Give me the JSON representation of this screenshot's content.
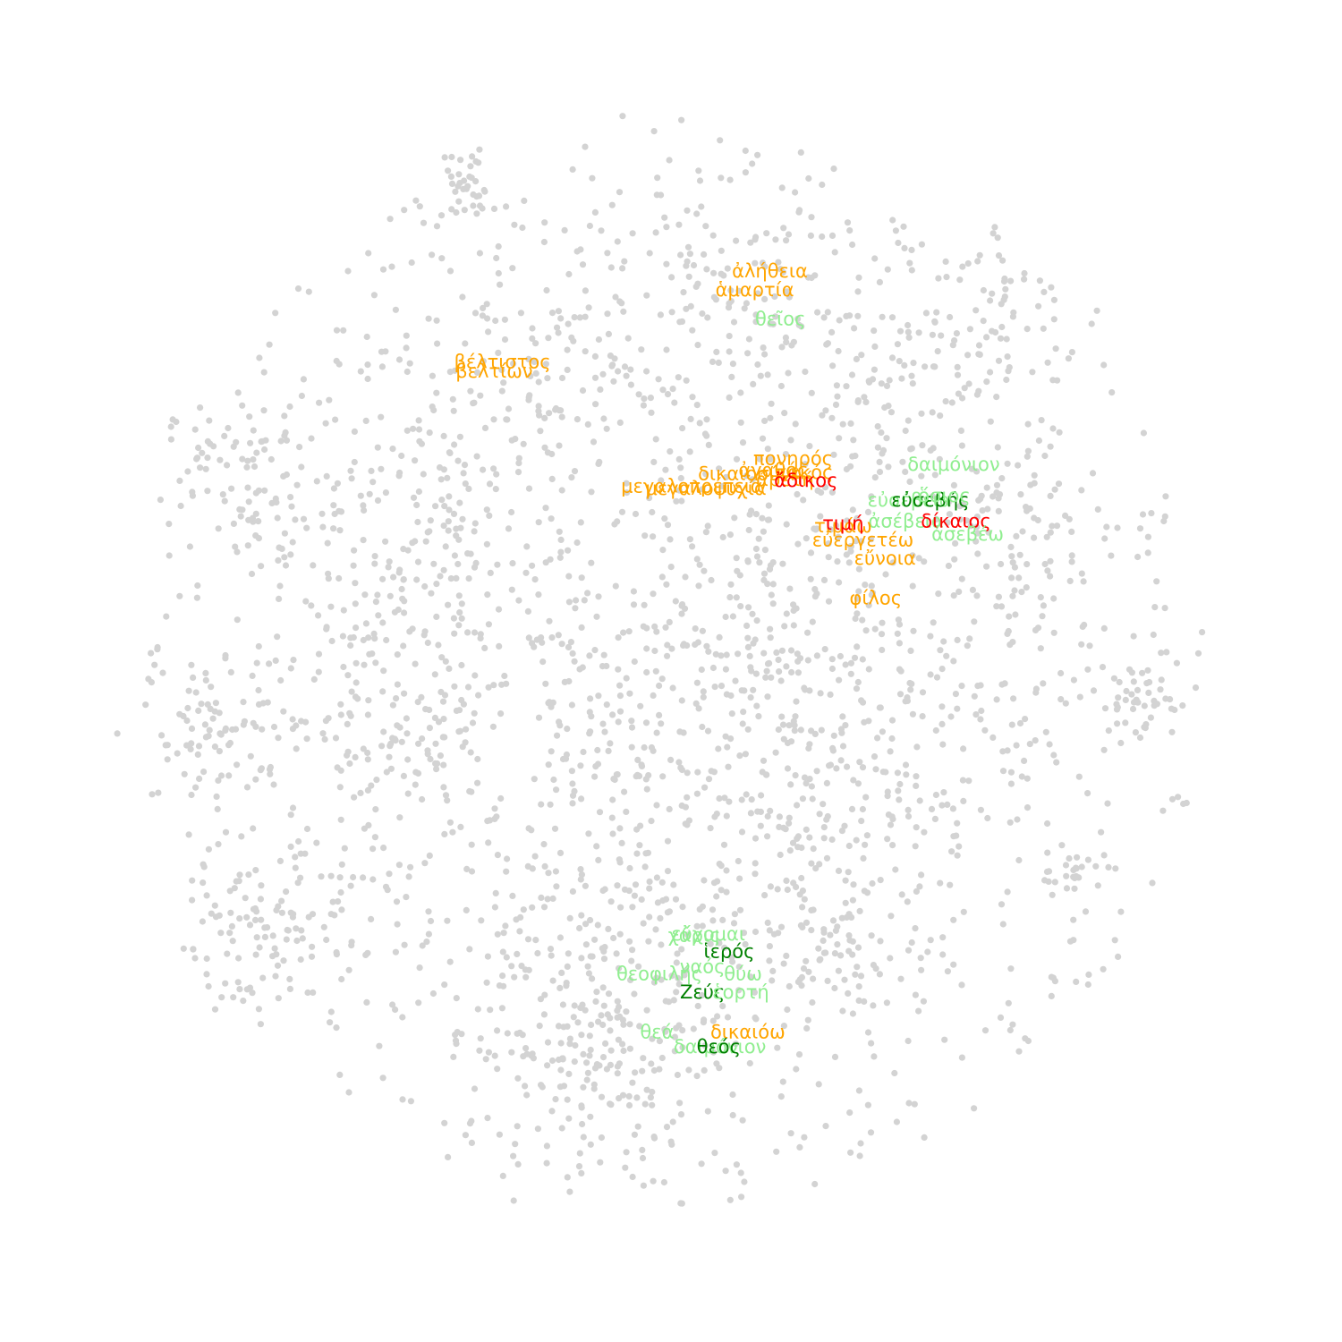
{
  "chart_data": {
    "type": "scatter",
    "title": "",
    "xlabel": "",
    "ylabel": "",
    "grid": false,
    "axes_visible": false,
    "xlim": [
      0,
      100
    ],
    "ylim": [
      0,
      100
    ],
    "colors": {
      "background_points": "#d3d3d3",
      "orange": "#ffa500",
      "red": "#ff0000",
      "light_green": "#90ee90",
      "dark_green": "#008000"
    },
    "background_clusters": [
      {
        "cx": 32.3,
        "cy": 91.6,
        "spread": 1.6,
        "count": 35
      },
      {
        "cx": 13.5,
        "cy": 66.5,
        "spread": 3.5,
        "count": 80
      },
      {
        "cx": 11.5,
        "cy": 45.0,
        "spread": 2.8,
        "count": 60
      },
      {
        "cx": 14.5,
        "cy": 27.5,
        "spread": 4.0,
        "count": 110
      },
      {
        "cx": 26.0,
        "cy": 46.0,
        "spread": 6.0,
        "count": 160
      },
      {
        "cx": 40.0,
        "cy": 75.0,
        "spread": 7.0,
        "count": 140
      },
      {
        "cx": 54.0,
        "cy": 82.0,
        "spread": 5.5,
        "count": 100
      },
      {
        "cx": 68.0,
        "cy": 72.0,
        "spread": 6.0,
        "count": 110
      },
      {
        "cx": 80.0,
        "cy": 62.0,
        "spread": 5.0,
        "count": 90
      },
      {
        "cx": 89.5,
        "cy": 48.0,
        "spread": 2.0,
        "count": 40
      },
      {
        "cx": 84.5,
        "cy": 33.0,
        "spread": 1.3,
        "count": 25
      },
      {
        "cx": 63.0,
        "cy": 28.5,
        "spread": 5.5,
        "count": 120
      },
      {
        "cx": 42.0,
        "cy": 24.0,
        "spread": 7.0,
        "count": 160
      },
      {
        "cx": 45.0,
        "cy": 15.5,
        "spread": 4.5,
        "count": 110
      },
      {
        "cx": 50.0,
        "cy": 44.0,
        "spread": 9.0,
        "count": 230
      },
      {
        "cx": 70.0,
        "cy": 45.0,
        "spread": 7.0,
        "count": 150
      },
      {
        "cx": 28.0,
        "cy": 62.0,
        "spread": 6.0,
        "count": 120
      },
      {
        "cx": 56.0,
        "cy": 60.0,
        "spread": 6.0,
        "count": 110
      },
      {
        "cx": 75.0,
        "cy": 81.0,
        "spread": 4.5,
        "count": 60
      }
    ],
    "words": [
      {
        "text": "ἀλήθεια",
        "x": 58.5,
        "y": 84.3,
        "color": "orange"
      },
      {
        "text": "ἁμαρτία",
        "x": 57.2,
        "y": 82.7,
        "color": "orange"
      },
      {
        "text": "θεῖος",
        "x": 59.4,
        "y": 80.2,
        "color": "light_green"
      },
      {
        "text": "βέλτιστος",
        "x": 35.5,
        "y": 76.5,
        "color": "orange"
      },
      {
        "text": "βελτίων",
        "x": 34.8,
        "y": 75.7,
        "color": "orange"
      },
      {
        "text": "πονηρός",
        "x": 60.5,
        "y": 68.2,
        "color": "orange"
      },
      {
        "text": "δαιμόνιον",
        "x": 74.3,
        "y": 67.7,
        "color": "light_green"
      },
      {
        "text": "δικαιοσύνη",
        "x": 56.8,
        "y": 66.9,
        "color": "orange"
      },
      {
        "text": "ἀγαθός",
        "x": 58.8,
        "y": 67.2,
        "color": "orange"
      },
      {
        "text": "κακός",
        "x": 61.5,
        "y": 67.0,
        "color": "orange"
      },
      {
        "text": "ἀρετή",
        "x": 59.8,
        "y": 66.4,
        "color": "orange"
      },
      {
        "text": "ἄδικος",
        "x": 61.6,
        "y": 66.3,
        "color": "red"
      },
      {
        "text": "μεγαλοψυχία",
        "x": 53.0,
        "y": 65.6,
        "color": "orange"
      },
      {
        "text": "μεγαλοπρέπεια",
        "x": 51.8,
        "y": 65.8,
        "color": "orange"
      },
      {
        "text": "εὐσέβεια",
        "x": 70.5,
        "y": 64.6,
        "color": "light_green"
      },
      {
        "text": "εὐσεβής",
        "x": 72.3,
        "y": 64.6,
        "color": "dark_green"
      },
      {
        "text": "ὅσιος",
        "x": 73.5,
        "y": 65.0,
        "color": "light_green"
      },
      {
        "text": "ἀσέβεια",
        "x": 70.2,
        "y": 62.8,
        "color": "light_green"
      },
      {
        "text": "τιμάω",
        "x": 64.8,
        "y": 62.4,
        "color": "orange"
      },
      {
        "text": "τιμή",
        "x": 64.8,
        "y": 62.6,
        "color": "red"
      },
      {
        "text": "δίκαιος",
        "x": 74.5,
        "y": 62.8,
        "color": "red"
      },
      {
        "text": "ἀσεβέω",
        "x": 75.5,
        "y": 61.7,
        "color": "light_green"
      },
      {
        "text": "εὐεργετέω",
        "x": 66.5,
        "y": 61.2,
        "color": "orange"
      },
      {
        "text": "εὔνοια",
        "x": 68.4,
        "y": 59.6,
        "color": "orange"
      },
      {
        "text": "φίλος",
        "x": 67.6,
        "y": 56.2,
        "color": "orange"
      },
      {
        "text": "εὔχομαι",
        "x": 53.2,
        "y": 27.3,
        "color": "light_green"
      },
      {
        "text": "χάρις",
        "x": 52.0,
        "y": 27.2,
        "color": "light_green"
      },
      {
        "text": "ἱερός",
        "x": 55.0,
        "y": 25.8,
        "color": "dark_green"
      },
      {
        "text": "ναός",
        "x": 52.7,
        "y": 24.5,
        "color": "light_green"
      },
      {
        "text": "θεοφιλής",
        "x": 49.0,
        "y": 23.9,
        "color": "light_green"
      },
      {
        "text": "θύω",
        "x": 56.2,
        "y": 23.9,
        "color": "light_green"
      },
      {
        "text": "Ζεύς",
        "x": 52.7,
        "y": 22.3,
        "color": "dark_green"
      },
      {
        "text": "ἑορτή",
        "x": 56.0,
        "y": 22.3,
        "color": "light_green"
      },
      {
        "text": "θεά",
        "x": 48.8,
        "y": 18.9,
        "color": "light_green"
      },
      {
        "text": "δικαιόω",
        "x": 56.6,
        "y": 18.9,
        "color": "orange"
      },
      {
        "text": "δαιμόνιον",
        "x": 54.2,
        "y": 17.6,
        "color": "light_green"
      },
      {
        "text": "θεός",
        "x": 54.1,
        "y": 17.6,
        "color": "dark_green"
      }
    ]
  }
}
